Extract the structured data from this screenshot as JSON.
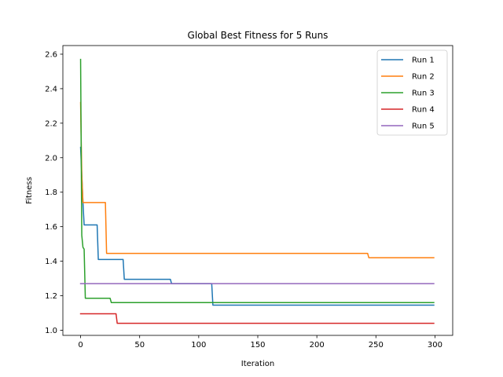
{
  "chart_data": {
    "type": "line",
    "title": "Global Best Fitness for 5 Runs",
    "xlabel": "Iteration",
    "ylabel": "Fitness",
    "xlim": [
      -15,
      315
    ],
    "ylim": [
      0.97,
      2.65
    ],
    "xticks": [
      0,
      50,
      100,
      150,
      200,
      250,
      300
    ],
    "yticks": [
      1.0,
      1.2,
      1.4,
      1.6,
      1.8,
      2.0,
      2.2,
      2.4,
      2.6
    ],
    "ytick_labels": [
      "1.0",
      "1.2",
      "1.4",
      "1.6",
      "1.8",
      "2.0",
      "2.2",
      "2.4",
      "2.6"
    ],
    "grid": false,
    "legend_position": "top-right",
    "series": [
      {
        "name": "Run 1",
        "color": "#1f77b4",
        "points": [
          [
            0,
            2.06
          ],
          [
            1,
            1.9
          ],
          [
            2,
            1.74
          ],
          [
            3,
            1.61
          ],
          [
            14,
            1.61
          ],
          [
            15,
            1.41
          ],
          [
            36,
            1.41
          ],
          [
            37,
            1.295
          ],
          [
            76,
            1.295
          ],
          [
            77,
            1.27
          ],
          [
            111,
            1.27
          ],
          [
            112,
            1.145
          ],
          [
            299,
            1.145
          ]
        ]
      },
      {
        "name": "Run 2",
        "color": "#ff7f0e",
        "points": [
          [
            0,
            2.32
          ],
          [
            1,
            1.9
          ],
          [
            2,
            1.74
          ],
          [
            21,
            1.74
          ],
          [
            22,
            1.445
          ],
          [
            243,
            1.445
          ],
          [
            244,
            1.42
          ],
          [
            299,
            1.42
          ]
        ]
      },
      {
        "name": "Run 3",
        "color": "#2ca02c",
        "points": [
          [
            0,
            2.57
          ],
          [
            1,
            1.55
          ],
          [
            2,
            1.48
          ],
          [
            3,
            1.47
          ],
          [
            4,
            1.185
          ],
          [
            25,
            1.185
          ],
          [
            26,
            1.16
          ],
          [
            299,
            1.16
          ]
        ]
      },
      {
        "name": "Run 4",
        "color": "#d62728",
        "points": [
          [
            0,
            1.095
          ],
          [
            30,
            1.095
          ],
          [
            31,
            1.04
          ],
          [
            299,
            1.04
          ]
        ]
      },
      {
        "name": "Run 5",
        "color": "#9467bd",
        "points": [
          [
            0,
            1.27
          ],
          [
            299,
            1.27
          ]
        ]
      }
    ]
  }
}
